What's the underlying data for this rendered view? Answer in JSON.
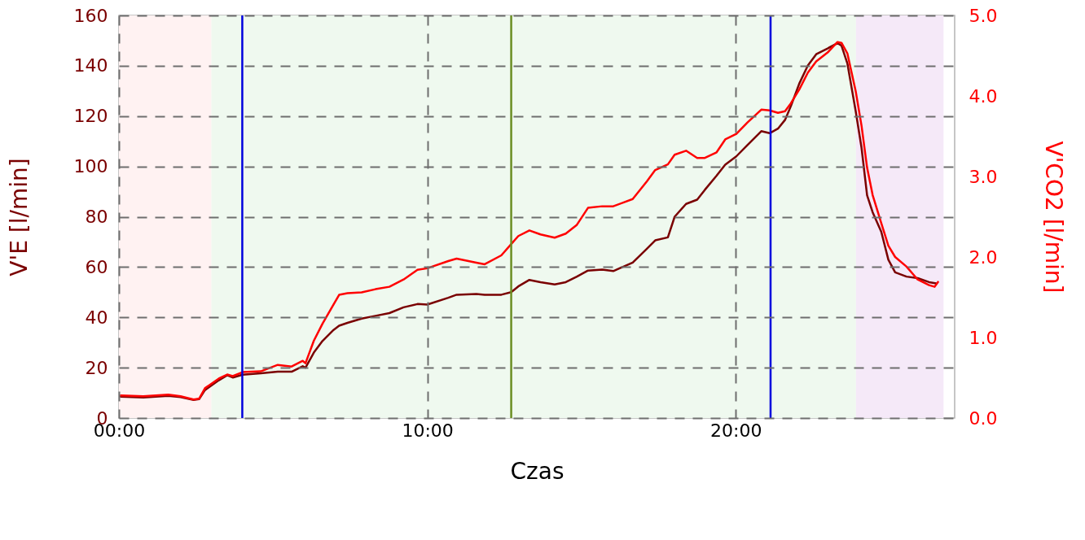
{
  "chart_data": {
    "type": "line",
    "xlabel": "Czas",
    "ylabel": "V'E [l/min]",
    "y2label": "V'CO2 [l/min]",
    "xlim": [
      0,
      27.1
    ],
    "xticks": [
      {
        "value": 0,
        "label": "00:00"
      },
      {
        "value": 10,
        "label": "10:00"
      },
      {
        "value": 20,
        "label": "20:00"
      }
    ],
    "ylim": [
      0,
      160
    ],
    "yticks": [
      0,
      20,
      40,
      60,
      80,
      100,
      120,
      140,
      160
    ],
    "y2lim": [
      0,
      5
    ],
    "y2ticks": [
      {
        "value": 0,
        "label": "0.0"
      },
      {
        "value": 1,
        "label": "1.0"
      },
      {
        "value": 2,
        "label": "2.0"
      },
      {
        "value": 3,
        "label": "3.0"
      },
      {
        "value": 4,
        "label": "4.0"
      },
      {
        "value": 5,
        "label": "5.0"
      }
    ],
    "grid": true,
    "series": [
      {
        "color": "#7a0000",
        "axis": "y",
        "x": [
          0.06,
          0.79,
          1.6,
          2.0,
          2.42,
          2.6,
          2.79,
          3.24,
          3.51,
          3.69,
          4.01,
          4.6,
          5.15,
          5.6,
          5.96,
          6.05,
          6.32,
          6.6,
          6.96,
          7.14,
          7.41,
          7.87,
          8.32,
          8.77,
          9.23,
          9.68,
          10.0,
          10.68,
          10.95,
          11.59,
          11.86,
          12.4,
          12.72,
          12.95,
          13.31,
          13.67,
          14.13,
          14.49,
          14.85,
          15.21,
          15.67,
          16.03,
          16.66,
          17.12,
          17.39,
          17.8,
          18.02,
          18.39,
          18.75,
          19.0,
          19.38,
          19.66,
          20.02,
          20.38,
          20.83,
          21.1,
          21.37,
          21.6,
          21.79,
          22.06,
          22.34,
          22.61,
          22.98,
          23.3,
          23.43,
          23.62,
          23.89,
          24.08,
          24.26,
          24.44,
          24.72,
          24.95,
          25.17,
          25.54,
          25.9,
          26.27,
          26.5
        ],
        "values": [
          8.5,
          8.2,
          8.8,
          8.3,
          7.2,
          7.5,
          11.1,
          15,
          17,
          16.1,
          17.2,
          17.8,
          18.4,
          18.4,
          20.6,
          20,
          26,
          30.6,
          35,
          36.7,
          37.8,
          39.5,
          40.6,
          41.7,
          44,
          45.3,
          45.1,
          47.8,
          49,
          49.3,
          49,
          49,
          50,
          52.3,
          54.9,
          54,
          53.1,
          54,
          56.2,
          58.6,
          59,
          58.4,
          61.8,
          67.3,
          70.6,
          71.8,
          80,
          85.1,
          86.8,
          90.7,
          96.3,
          100.7,
          104,
          108.5,
          114,
          113.2,
          115,
          118.5,
          124,
          132.9,
          140.1,
          144.6,
          146.9,
          149,
          148,
          141,
          122,
          107.4,
          88.5,
          81.8,
          74,
          62.9,
          57.9,
          56.2,
          55.6,
          54,
          53.5
        ]
      },
      {
        "color": "#ff0000",
        "axis": "y2",
        "x": [
          0.06,
          0.79,
          1.6,
          2.0,
          2.42,
          2.6,
          2.79,
          3.24,
          3.51,
          3.69,
          4.01,
          4.6,
          5.15,
          5.6,
          5.96,
          6.05,
          6.32,
          6.6,
          6.96,
          7.14,
          7.41,
          7.87,
          8.32,
          8.77,
          9.23,
          9.68,
          10.0,
          10.68,
          10.95,
          11.59,
          11.86,
          12.4,
          12.72,
          12.95,
          13.31,
          13.67,
          14.13,
          14.49,
          14.85,
          15.21,
          15.67,
          16.03,
          16.66,
          17.12,
          17.39,
          17.8,
          18.02,
          18.39,
          18.75,
          19.0,
          19.38,
          19.66,
          20.02,
          20.38,
          20.83,
          21.1,
          21.37,
          21.6,
          21.79,
          22.06,
          22.34,
          22.61,
          22.98,
          23.3,
          23.43,
          23.62,
          23.89,
          24.08,
          24.26,
          24.44,
          24.72,
          24.95,
          25.17,
          25.54,
          25.9,
          26.27,
          26.45,
          26.56
        ],
        "values": [
          0.28,
          0.27,
          0.29,
          0.27,
          0.23,
          0.24,
          0.37,
          0.49,
          0.54,
          0.52,
          0.57,
          0.58,
          0.66,
          0.64,
          0.71,
          0.68,
          0.96,
          1.17,
          1.41,
          1.53,
          1.55,
          1.56,
          1.6,
          1.63,
          1.72,
          1.84,
          1.86,
          1.95,
          1.98,
          1.93,
          1.91,
          2.02,
          2.16,
          2.26,
          2.33,
          2.28,
          2.24,
          2.29,
          2.4,
          2.61,
          2.63,
          2.63,
          2.72,
          2.94,
          3.08,
          3.15,
          3.27,
          3.32,
          3.23,
          3.23,
          3.3,
          3.46,
          3.53,
          3.67,
          3.83,
          3.82,
          3.79,
          3.81,
          3.91,
          4.08,
          4.29,
          4.43,
          4.54,
          4.67,
          4.66,
          4.53,
          4.06,
          3.63,
          3.11,
          2.77,
          2.42,
          2.14,
          2.0,
          1.88,
          1.72,
          1.65,
          1.63,
          1.69
        ]
      }
    ],
    "bands": [
      {
        "axis": "x",
        "from": 0,
        "to": 3.0,
        "color": "#fff2f2"
      },
      {
        "axis": "x",
        "from": 3.0,
        "to": 23.9,
        "color": "#eff9ef"
      },
      {
        "axis": "x",
        "from": 23.9,
        "to": 26.74,
        "color": "#f5e9f8"
      }
    ],
    "ref_lines": [
      {
        "axis": "x",
        "value": 4.0,
        "color": "#0000dd"
      },
      {
        "axis": "x",
        "value": 12.72,
        "color": "#6b8e23"
      },
      {
        "axis": "x",
        "value": 21.13,
        "color": "#0000dd"
      }
    ]
  }
}
